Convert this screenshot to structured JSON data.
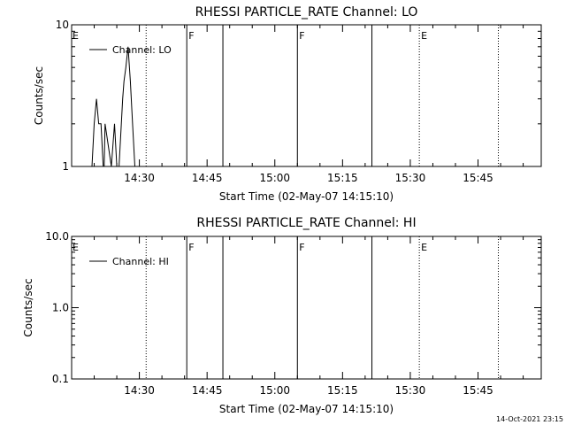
{
  "footer": {
    "timestamp": "14-Oct-2021 23:15"
  },
  "chart_data": [
    {
      "type": "line",
      "title": "RHESSI PARTICLE_RATE Channel: LO",
      "xlabel": "Start Time (02-May-07 14:15:10)",
      "ylabel": "Counts/sec",
      "yscale": "log",
      "ylim": [
        1,
        10
      ],
      "xlim_min": [
        0,
        104
      ],
      "xtick_values": [
        15,
        30,
        45,
        60,
        75,
        90
      ],
      "xtick_labels": [
        "14:30",
        "14:45",
        "15:00",
        "15:15",
        "15:30",
        "15:45"
      ],
      "ytick_values": [
        1,
        10
      ],
      "ytick_labels": [
        "1",
        "10"
      ],
      "legend": {
        "label": "Channel: LO",
        "position": "top-left"
      },
      "series": [
        {
          "name": "Channel: LO",
          "x": [
            4.5,
            5.0,
            5.5,
            6.0,
            6.5,
            7.0,
            7.2,
            7.4,
            8.8,
            9.5,
            10.0,
            10.5,
            11.0,
            11.3,
            11.6,
            12.0,
            12.5,
            13.0,
            13.5,
            14.0
          ],
          "y": [
            1,
            2,
            3,
            2,
            2,
            1,
            1,
            2,
            1,
            2,
            1,
            1,
            2,
            3,
            4,
            5,
            7,
            4,
            2,
            1
          ]
        }
      ],
      "event_lines": [
        {
          "x": 16.5,
          "style": "dotted",
          "label": ""
        },
        {
          "x": 25.5,
          "style": "solid",
          "label": "F"
        },
        {
          "x": 33.5,
          "style": "solid",
          "label": ""
        },
        {
          "x": 50.0,
          "style": "solid",
          "label": "F"
        },
        {
          "x": 66.5,
          "style": "solid",
          "label": ""
        },
        {
          "x": 77.0,
          "style": "dotted",
          "label": "E"
        },
        {
          "x": 94.5,
          "style": "dotted",
          "label": ""
        }
      ],
      "left_flag": "E"
    },
    {
      "type": "line",
      "title": "RHESSI PARTICLE_RATE Channel: HI",
      "xlabel": "Start Time (02-May-07 14:15:10)",
      "ylabel": "Counts/sec",
      "yscale": "log",
      "ylim": [
        0.1,
        10
      ],
      "xlim_min": [
        0,
        104
      ],
      "xtick_values": [
        15,
        30,
        45,
        60,
        75,
        90
      ],
      "xtick_labels": [
        "14:30",
        "14:45",
        "15:00",
        "15:15",
        "15:30",
        "15:45"
      ],
      "ytick_values": [
        0.1,
        1,
        10
      ],
      "ytick_labels": [
        "0.1",
        "1.0",
        "10.0"
      ],
      "legend": {
        "label": "Channel: HI",
        "position": "top-left"
      },
      "series": [],
      "event_lines": [
        {
          "x": 16.5,
          "style": "dotted",
          "label": ""
        },
        {
          "x": 25.5,
          "style": "solid",
          "label": "F"
        },
        {
          "x": 33.5,
          "style": "solid",
          "label": ""
        },
        {
          "x": 50.0,
          "style": "solid",
          "label": "F"
        },
        {
          "x": 66.5,
          "style": "solid",
          "label": ""
        },
        {
          "x": 77.0,
          "style": "dotted",
          "label": "E"
        },
        {
          "x": 94.5,
          "style": "dotted",
          "label": ""
        }
      ],
      "left_flag": "E"
    }
  ]
}
